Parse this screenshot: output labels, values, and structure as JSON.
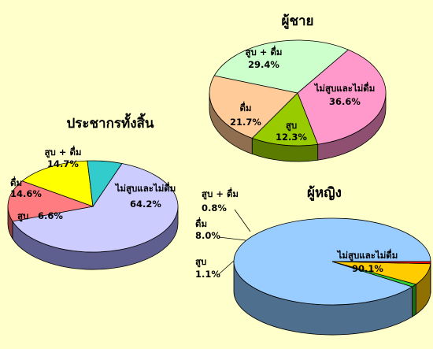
{
  "chart_data": [
    {
      "type": "pie",
      "title": "ประชากรทั้งสิ้น",
      "slices": [
        {
          "label": "ไม่สูบและไม่ดื่ม",
          "value": 64.2,
          "value_label": "64.2%",
          "color": "#CCCCFF",
          "side": "#5F5F8F"
        },
        {
          "label": "สูบ + ดื่ม",
          "value": 14.7,
          "value_label": "14.7%",
          "color": "#FF7C80",
          "side": "#8F3F41"
        },
        {
          "label": "ดื่ม",
          "value": 14.6,
          "value_label": "14.6%",
          "color": "#FFFF00",
          "side": "#8F8F00"
        },
        {
          "label": "สูบ",
          "value": 6.6,
          "value_label": "6.6%",
          "color": "#33CCCC",
          "side": "#1A6A6A"
        }
      ]
    },
    {
      "type": "pie",
      "title": "ผู้ชาย",
      "slices": [
        {
          "label": "ไม่สูบและไม่ดื่ม",
          "value": 36.6,
          "value_label": "36.6%",
          "color": "#FF99CC",
          "side": "#8F4F70"
        },
        {
          "label": "สูบ",
          "value": 12.3,
          "value_label": "12.3%",
          "color": "#99CC00",
          "side": "#5A7A00"
        },
        {
          "label": "ดื่ม",
          "value": 21.7,
          "value_label": "21.7%",
          "color": "#FFCC99",
          "side": "#8F6F50"
        },
        {
          "label": "สูบ + ดื่ม",
          "value": 29.4,
          "value_label": "29.4%",
          "color": "#CCFFCC",
          "side": "#6F8F6F"
        }
      ]
    },
    {
      "type": "pie",
      "title": "ผู้หญิง",
      "slices": [
        {
          "label": "ไม่สูบและไม่ดื่ม",
          "value": 90.1,
          "value_label": "90.1%",
          "color": "#99CCFF",
          "side": "#4F6F8F"
        },
        {
          "label": "สูบ",
          "value": 1.1,
          "value_label": "1.1%",
          "color": "#33CC33",
          "side": "#1A6A1A"
        },
        {
          "label": "ดื่ม",
          "value": 8.0,
          "value_label": "8.0%",
          "color": "#FFCC00",
          "side": "#8F7000"
        },
        {
          "label": "สูบ + ดื่ม",
          "value": 0.8,
          "value_label": "0.8%",
          "color": "#FF0000",
          "side": "#8F0000"
        }
      ]
    }
  ]
}
